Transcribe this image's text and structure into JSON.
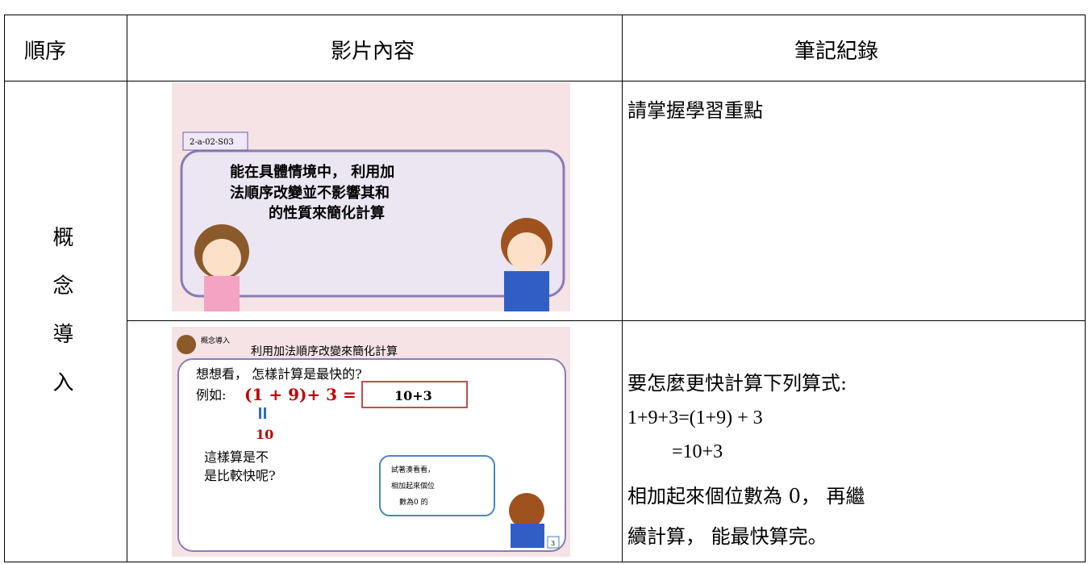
{
  "table": {
    "headers": [
      "順序",
      "影片內容",
      "筆記紀錄"
    ],
    "section": "概念導入",
    "rows": [
      {
        "video": {
          "code": "2-a-02-S03",
          "lines": [
            "能在具體情境中， 利用加",
            "法順序改變並不影響其和",
            "的性質來簡化計算"
          ]
        },
        "notes": [
          "請掌握學習重點"
        ]
      },
      {
        "video": {
          "badge": "概念導入",
          "heading": "利用加法順序改變來簡化計算",
          "question": "想想看， 怎樣計算是最快的?",
          "example": "例如:",
          "expr": "(1 + 9)+ 3 =",
          "answer": "10+3",
          "result": "10",
          "ask": [
            "這樣算是不",
            "是比較快呢?"
          ],
          "bubble": [
            "試著湊看看，",
            "相加起來個位",
            "數為0 的"
          ],
          "page": "3"
        },
        "notes": [
          "要怎麼更快計算下列算式:",
          "1+9+3=(1+9) + 3",
          "=10+3",
          "相加起來個位數為 0， 再繼",
          "續計算， 能最快算完。"
        ]
      }
    ]
  }
}
